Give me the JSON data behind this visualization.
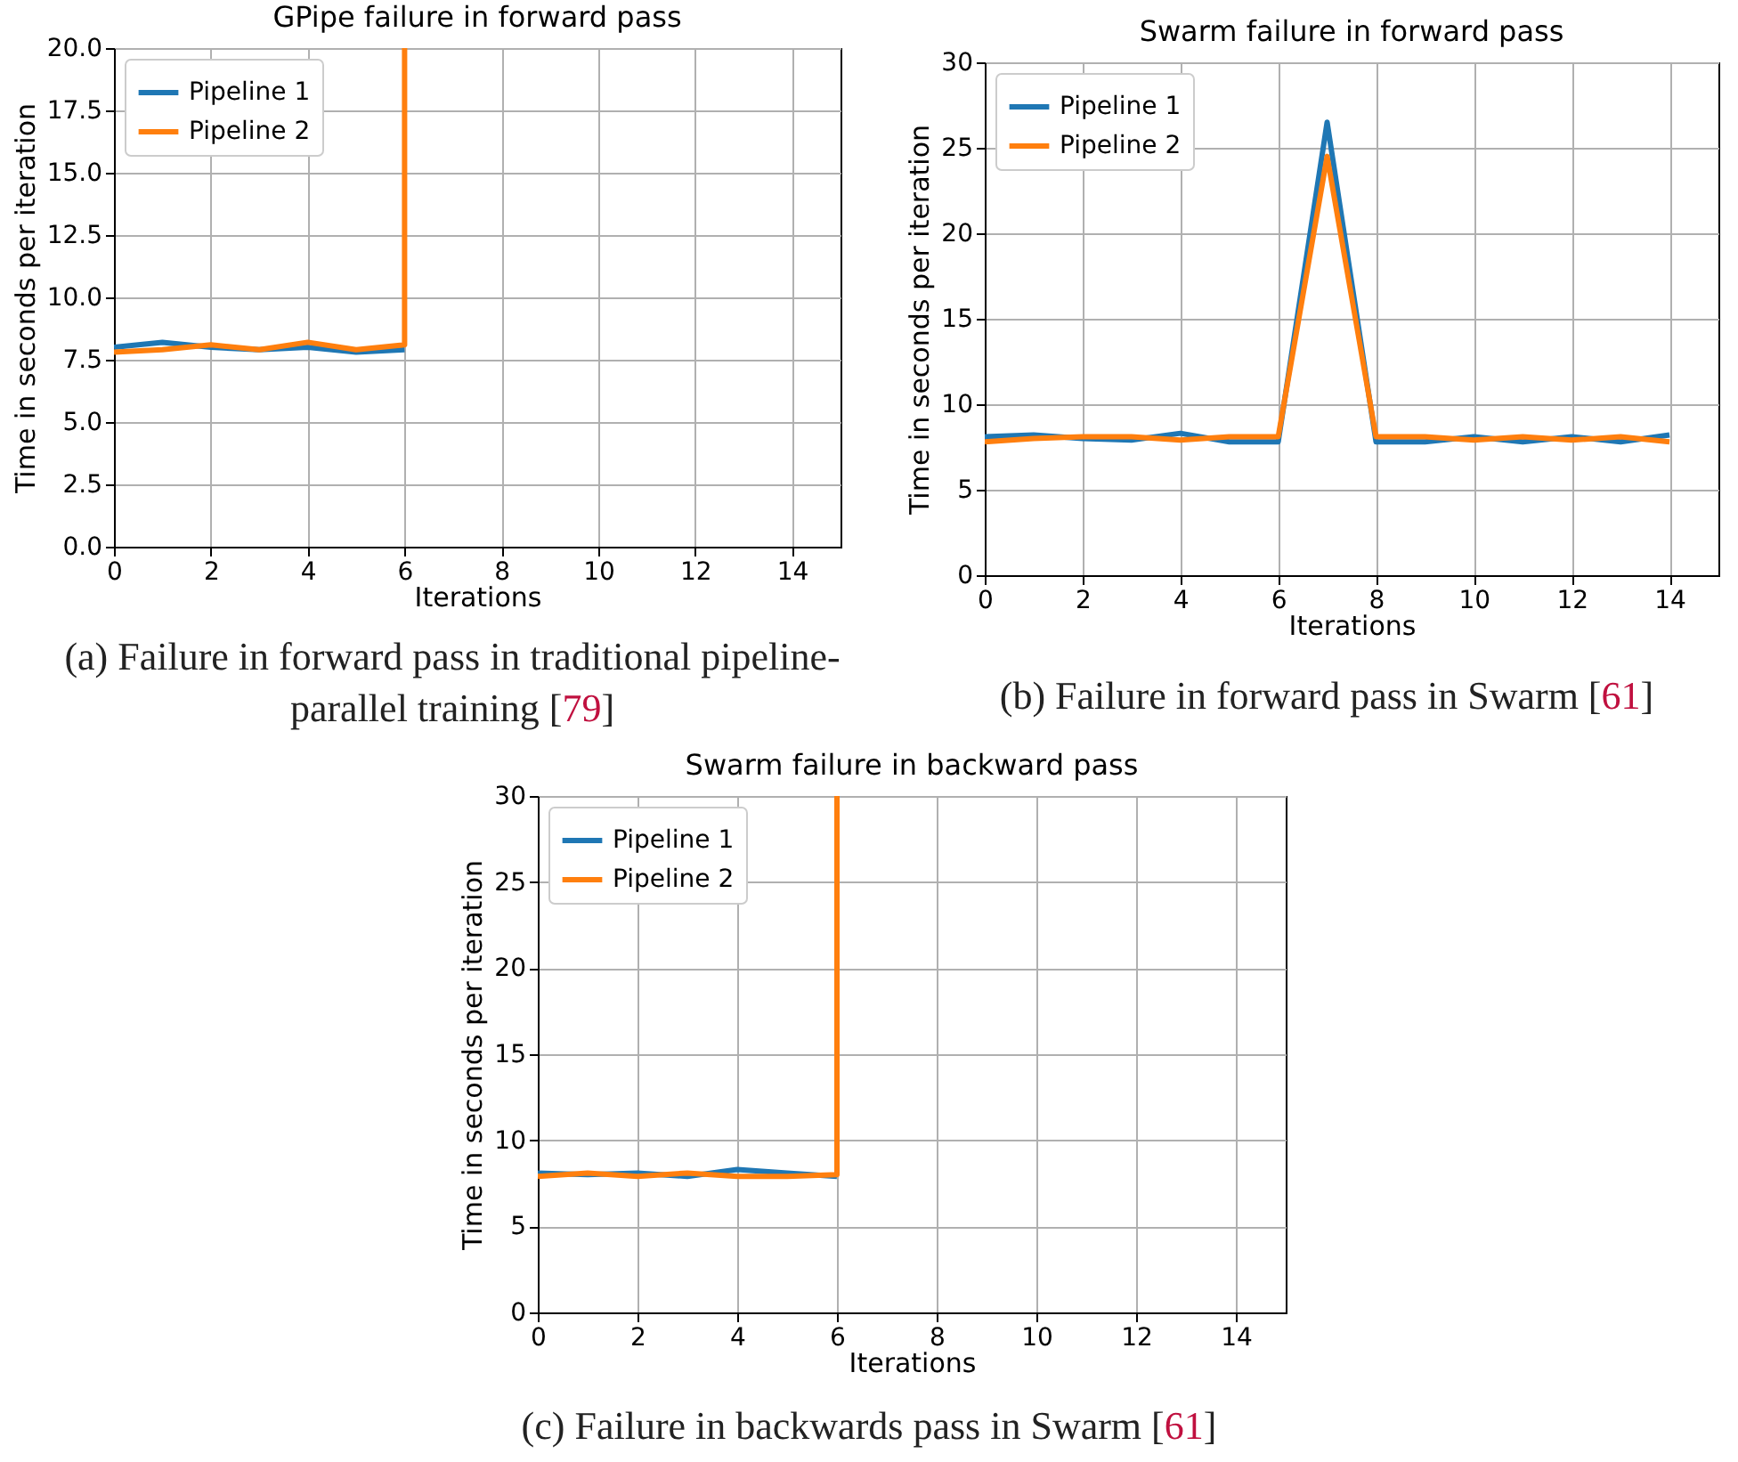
{
  "chart_data": [
    {
      "type": "line",
      "title": "GPipe failure in forward pass",
      "xlabel": "Iterations",
      "ylabel": "Time in seconds per iteration",
      "xlim": [
        0,
        15
      ],
      "xticks": [
        0,
        2,
        4,
        6,
        8,
        10,
        12,
        14
      ],
      "ylim": [
        0,
        20
      ],
      "yticks": [
        {
          "value": 0,
          "label": "0.0"
        },
        {
          "value": 2.5,
          "label": "2.5"
        },
        {
          "value": 5,
          "label": "5.0"
        },
        {
          "value": 7.5,
          "label": "7.5"
        },
        {
          "value": 10,
          "label": "10.0"
        },
        {
          "value": 12.5,
          "label": "12.5"
        },
        {
          "value": 15,
          "label": "15.0"
        },
        {
          "value": 17.5,
          "label": "17.5"
        },
        {
          "value": 20,
          "label": "20.0"
        }
      ],
      "grid": true,
      "legend": "top left",
      "series": [
        {
          "name": "Pipeline 1",
          "color": "#1f77b4",
          "x": [
            0,
            1,
            2,
            3,
            4,
            5,
            6
          ],
          "values": [
            8.0,
            8.2,
            8.0,
            7.9,
            8.0,
            7.8,
            7.9
          ]
        },
        {
          "name": "Pipeline 2",
          "color": "#ff7f0e",
          "x": [
            0,
            1,
            2,
            3,
            4,
            5,
            6,
            6
          ],
          "values": [
            7.8,
            7.9,
            8.1,
            7.9,
            8.2,
            7.9,
            8.1,
            20
          ]
        }
      ],
      "annotations": [
        "(a) Failure in forward pass in traditional pipeline-parallel training [79]"
      ]
    },
    {
      "type": "line",
      "title": "Swarm failure in forward pass",
      "xlabel": "Iterations",
      "ylabel": "Time in seconds per iteration",
      "xlim": [
        0,
        15
      ],
      "xticks": [
        0,
        2,
        4,
        6,
        8,
        10,
        12,
        14
      ],
      "ylim": [
        0,
        30
      ],
      "yticks": [
        0,
        5,
        10,
        15,
        20,
        25,
        30
      ],
      "grid": true,
      "legend": "top left",
      "series": [
        {
          "name": "Pipeline 1",
          "color": "#1f77b4",
          "x": [
            0,
            1,
            2,
            3,
            4,
            5,
            6,
            7,
            8,
            9,
            10,
            11,
            12,
            13,
            14
          ],
          "values": [
            8.1,
            8.2,
            8.0,
            7.9,
            8.3,
            7.8,
            7.8,
            26.5,
            7.8,
            7.8,
            8.1,
            7.8,
            8.1,
            7.8,
            8.2
          ]
        },
        {
          "name": "Pipeline 2",
          "color": "#ff7f0e",
          "x": [
            0,
            1,
            2,
            3,
            4,
            5,
            6,
            7,
            8,
            9,
            10,
            11,
            12,
            13,
            14
          ],
          "values": [
            7.8,
            8.0,
            8.1,
            8.1,
            7.9,
            8.1,
            8.1,
            24.5,
            8.1,
            8.1,
            7.9,
            8.1,
            7.9,
            8.1,
            7.8
          ]
        }
      ],
      "annotations": [
        "(b) Failure in forward pass in Swarm [61]"
      ]
    },
    {
      "type": "line",
      "title": "Swarm failure in backward pass",
      "xlabel": "Iterations",
      "ylabel": "Time in seconds per iteration",
      "xlim": [
        0,
        15
      ],
      "xticks": [
        0,
        2,
        4,
        6,
        8,
        10,
        12,
        14
      ],
      "ylim": [
        0,
        30
      ],
      "yticks": [
        0,
        5,
        10,
        15,
        20,
        25,
        30
      ],
      "grid": true,
      "legend": "top left",
      "series": [
        {
          "name": "Pipeline 1",
          "color": "#1f77b4",
          "x": [
            0,
            1,
            2,
            3,
            4,
            5,
            6
          ],
          "values": [
            8.1,
            8.0,
            8.1,
            7.9,
            8.3,
            8.1,
            7.9
          ]
        },
        {
          "name": "Pipeline 2",
          "color": "#ff7f0e",
          "x": [
            0,
            1,
            2,
            3,
            4,
            5,
            6,
            6
          ],
          "values": [
            7.9,
            8.1,
            7.9,
            8.1,
            7.9,
            7.9,
            8.0,
            30
          ]
        }
      ],
      "annotations": [
        "(c) Failure in backwards pass in Swarm [61]"
      ]
    }
  ]
}
